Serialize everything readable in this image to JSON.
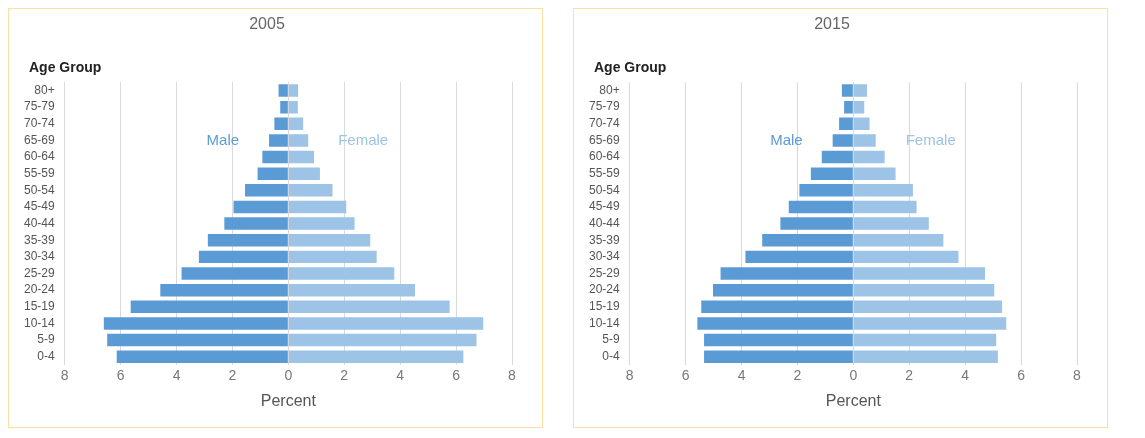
{
  "chart_data": [
    {
      "type": "bar",
      "orientation": "horizontal",
      "stacked": true,
      "title": "2005",
      "xlabel": "Percent",
      "ylabel": "Age Group",
      "categories": [
        "80+",
        "75-79",
        "70-74",
        "65-69",
        "60-64",
        "55-59",
        "50-54",
        "45-49",
        "40-44",
        "35-39",
        "30-34",
        "25-29",
        "20-24",
        "15-19",
        "10-14",
        "5-9",
        "0-4"
      ],
      "series": [
        {
          "name": "Male",
          "color": "#5b9bd5",
          "values": [
            -0.35,
            -0.29,
            -0.5,
            -0.69,
            -0.93,
            -1.1,
            -1.55,
            -1.96,
            -2.29,
            -2.88,
            -3.2,
            -3.82,
            -4.58,
            -5.64,
            -6.6,
            -6.48,
            -6.14
          ]
        },
        {
          "name": "Female",
          "color": "#9dc3e6",
          "values": [
            0.35,
            0.34,
            0.53,
            0.71,
            0.92,
            1.13,
            1.58,
            2.07,
            2.37,
            2.93,
            3.16,
            3.79,
            4.53,
            5.77,
            6.97,
            6.73,
            6.26
          ]
        }
      ],
      "xlim": [
        -8,
        8
      ],
      "xticks": [
        {
          "value": -8,
          "label": "8"
        },
        {
          "value": -6,
          "label": "6"
        },
        {
          "value": -4,
          "label": "4"
        },
        {
          "value": -2,
          "label": "2"
        },
        0,
        2,
        4,
        6,
        8
      ],
      "grid": "x",
      "legend": false
    },
    {
      "type": "bar",
      "orientation": "horizontal",
      "stacked": true,
      "title": "2015",
      "xlabel": "Percent",
      "ylabel": "Age Group",
      "categories": [
        "80+",
        "75-79",
        "70-74",
        "65-69",
        "60-64",
        "55-59",
        "50-54",
        "45-49",
        "40-44",
        "35-39",
        "30-34",
        "25-29",
        "20-24",
        "15-19",
        "10-14",
        "5-9",
        "0-4"
      ],
      "series": [
        {
          "name": "Male",
          "color": "#5b9bd5",
          "values": [
            -0.41,
            -0.33,
            -0.51,
            -0.74,
            -1.13,
            -1.52,
            -1.93,
            -2.31,
            -2.61,
            -3.26,
            -3.86,
            -4.75,
            -5.02,
            -5.44,
            -5.58,
            -5.34,
            -5.34
          ]
        },
        {
          "name": "Female",
          "color": "#9dc3e6",
          "values": [
            0.49,
            0.39,
            0.58,
            0.8,
            1.12,
            1.51,
            2.13,
            2.26,
            2.7,
            3.22,
            3.76,
            4.71,
            5.04,
            5.32,
            5.47,
            5.11,
            5.17
          ]
        }
      ],
      "xlim": [
        -8,
        8
      ],
      "xticks": [
        {
          "value": -8,
          "label": "8"
        },
        {
          "value": -6,
          "label": "6"
        },
        {
          "value": -4,
          "label": "4"
        },
        {
          "value": -2,
          "label": "2"
        },
        0,
        2,
        4,
        6,
        8
      ],
      "grid": "x",
      "legend": false
    }
  ]
}
